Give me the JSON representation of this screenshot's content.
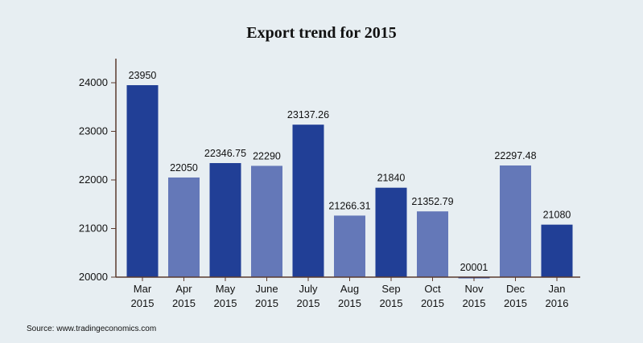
{
  "chart_data": {
    "type": "bar",
    "title": "Export trend for 2015",
    "categories": [
      "Mar 2015",
      "Apr 2015",
      "May 2015",
      "June 2015",
      "July 2015",
      "Aug 2015",
      "Sep 2015",
      "Oct 2015",
      "Nov 2015",
      "Dec 2015",
      "Jan 2016"
    ],
    "category_lines": [
      [
        "Mar",
        "2015"
      ],
      [
        "Apr",
        "2015"
      ],
      [
        "May",
        "2015"
      ],
      [
        "June",
        "2015"
      ],
      [
        "July",
        "2015"
      ],
      [
        "Aug",
        "2015"
      ],
      [
        "Sep",
        "2015"
      ],
      [
        "Oct",
        "2015"
      ],
      [
        "Nov",
        "2015"
      ],
      [
        "Dec",
        "2015"
      ],
      [
        "Jan",
        "2016"
      ]
    ],
    "values": [
      23950,
      22050,
      22346.75,
      22290,
      23137.26,
      21266.31,
      21840,
      21352.79,
      20001,
      22297.48,
      21080
    ],
    "value_labels": [
      "23950",
      "22050",
      "22346.75",
      "22290",
      "23137.26",
      "21266.31",
      "21840",
      "21352.79",
      "20001",
      "22297.48",
      "21080"
    ],
    "bar_shades": [
      "dark",
      "light",
      "dark",
      "light",
      "dark",
      "light",
      "dark",
      "light",
      "dark",
      "light",
      "dark"
    ],
    "ylim": [
      20000,
      24500
    ],
    "yticks": [
      "20000",
      "21000",
      "22000",
      "23000",
      "24000"
    ],
    "ytick_values": [
      20000,
      21000,
      22000,
      23000,
      24000
    ],
    "xlabel": "",
    "ylabel": "",
    "grid": false,
    "colors": {
      "dark": "#213f96",
      "light": "#6478b8",
      "axis": "#5a3a2e",
      "background": "#e7eef2"
    }
  },
  "source": "Source: www.tradingeconomics.com"
}
